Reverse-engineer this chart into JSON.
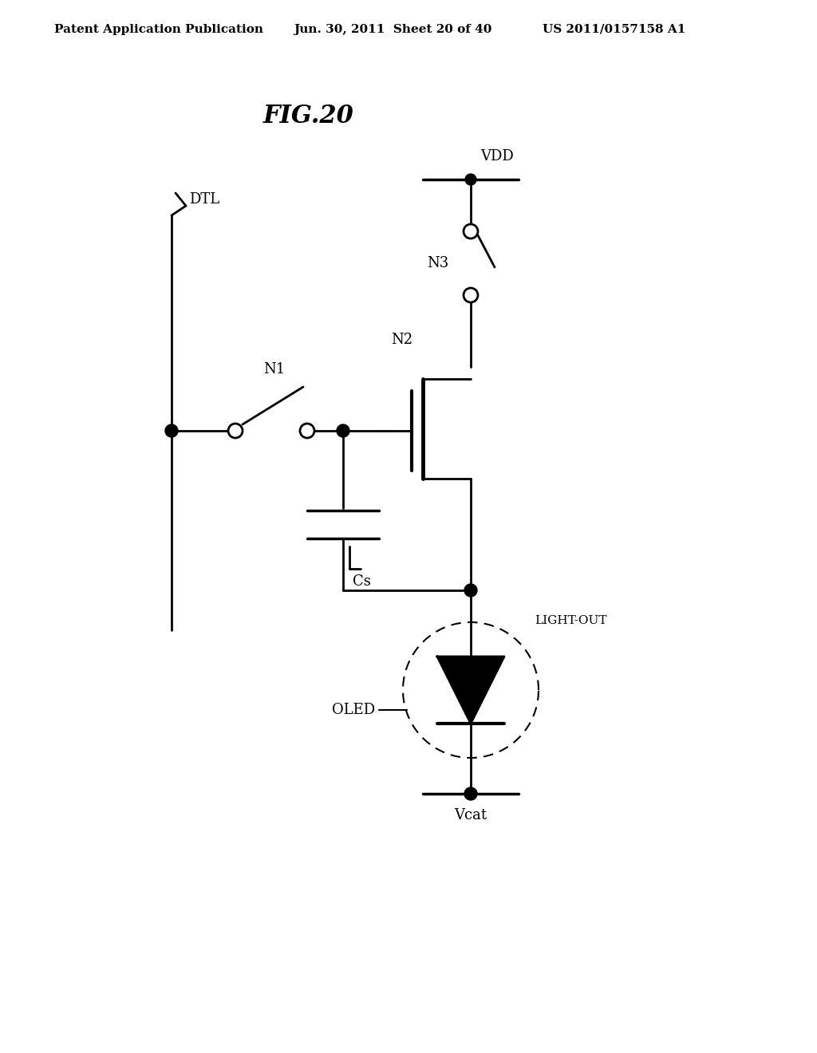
{
  "header_left": "Patent Application Publication",
  "header_mid": "Jun. 30, 2011  Sheet 20 of 40",
  "header_right": "US 2011/0157158 A1",
  "background_color": "#ffffff",
  "fig_title": "FIG.20",
  "vdd_label": "VDD",
  "vcat_label": "Vcat",
  "dtl_label": "DTL",
  "n1_label": "N1",
  "n2_label": "N2",
  "n3_label": "N3",
  "cs_label": "Cs",
  "oled_label": "OLED",
  "light_out_label": "LIGHT-OUT"
}
